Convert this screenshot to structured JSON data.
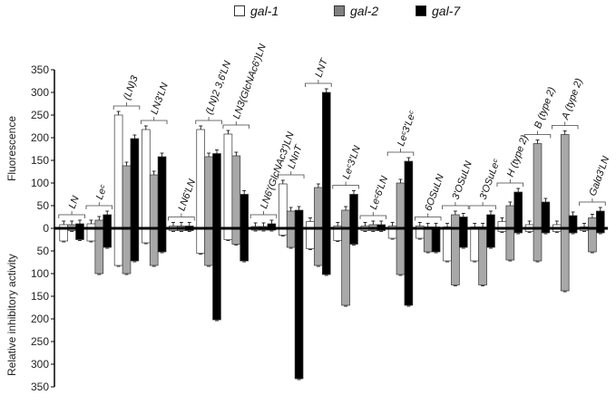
{
  "legend": [
    {
      "label": "gal-1",
      "color": "#ffffff"
    },
    {
      "label": "gal-2",
      "color": "#a8a8a8"
    },
    {
      "label": "gal-7",
      "color": "#000000"
    }
  ],
  "axis": {
    "ylabel_top": "Fluorescence",
    "ylabel_bottom": "Relative inhibitory activity",
    "ticks_up": [
      "350",
      "300",
      "250",
      "200",
      "150",
      "100",
      "50",
      "0"
    ],
    "ticks_down": [
      "50",
      "100",
      "150",
      "200",
      "250",
      "300",
      "350"
    ]
  },
  "chart_data": {
    "type": "bar",
    "title": "",
    "xlabel": "",
    "ylabel": "Fluorescence (up) / Relative inhibitory activity (down)",
    "ylim": [
      -350,
      350
    ],
    "categories": [
      "LN",
      "Le^c",
      "(LN)3",
      "LN3'LN",
      "LN6'LN",
      "(LN)2 3,6'LN",
      "LN3(GlcNAc6')LN",
      "LN6'(GlcNAc3')LN",
      "LNnT",
      "LNT",
      "Le^c3'LN",
      "Le^c6'LN",
      "Le^c3'Le^c",
      "6OSuLN",
      "3'OSuLN",
      "3'OSuLe^c",
      "H (type 2)",
      "B (type 2)",
      "A (type 2)",
      "Galα3'LN"
    ],
    "series": [
      {
        "name": "gal-1 fluorescence",
        "values": [
          8,
          10,
          250,
          218,
          5,
          218,
          208,
          4,
          98,
          15,
          5,
          5,
          5,
          5,
          3,
          3,
          15,
          8,
          8,
          3
        ]
      },
      {
        "name": "gal-2 fluorescence",
        "values": [
          8,
          18,
          138,
          118,
          5,
          158,
          160,
          4,
          38,
          90,
          40,
          8,
          100,
          3,
          30,
          3,
          50,
          187,
          207,
          23
        ]
      },
      {
        "name": "gal-7 fluorescence",
        "values": [
          10,
          30,
          198,
          158,
          5,
          165,
          75,
          10,
          40,
          300,
          75,
          8,
          148,
          3,
          25,
          30,
          80,
          58,
          28,
          38
        ]
      },
      {
        "name": "gal-1 inhibitory",
        "values": [
          28,
          28,
          82,
          32,
          5,
          55,
          25,
          4,
          15,
          45,
          27,
          5,
          22,
          22,
          72,
          72,
          7,
          7,
          7,
          5
        ]
      },
      {
        "name": "gal-2 inhibitory",
        "values": [
          5,
          100,
          100,
          82,
          5,
          82,
          35,
          4,
          42,
          82,
          170,
          5,
          102,
          52,
          125,
          125,
          70,
          72,
          138,
          52
        ]
      },
      {
        "name": "gal-7 inhibitory",
        "values": [
          25,
          42,
          72,
          52,
          5,
          202,
          72,
          4,
          332,
          102,
          35,
          5,
          170,
          52,
          42,
          42,
          10,
          10,
          10,
          10
        ]
      }
    ],
    "labels": [
      "LN",
      "Le<sup>c</sup>",
      "(LN)<sub>3</sub>",
      "LN3'LN",
      "LN6'LN",
      "(LN)<sub>2</sub>3,'6'LN",
      "LN3(GlcNAc6')LN",
      "LN6'(GlcNAc3')LN",
      "LNnT",
      "LNT",
      "Le<sup>c</sup>3'LN",
      "Le<sup>c</sup>6'LN",
      "Le<sup>c</sup>3'Le<sup>c</sup>",
      "6OSuLN",
      "3'OSuLN",
      "3'OSuLe<sup>c</sup>",
      "H (type 2)",
      "B (type 2)",
      "A (type 2)",
      "Galα3'LN"
    ]
  }
}
